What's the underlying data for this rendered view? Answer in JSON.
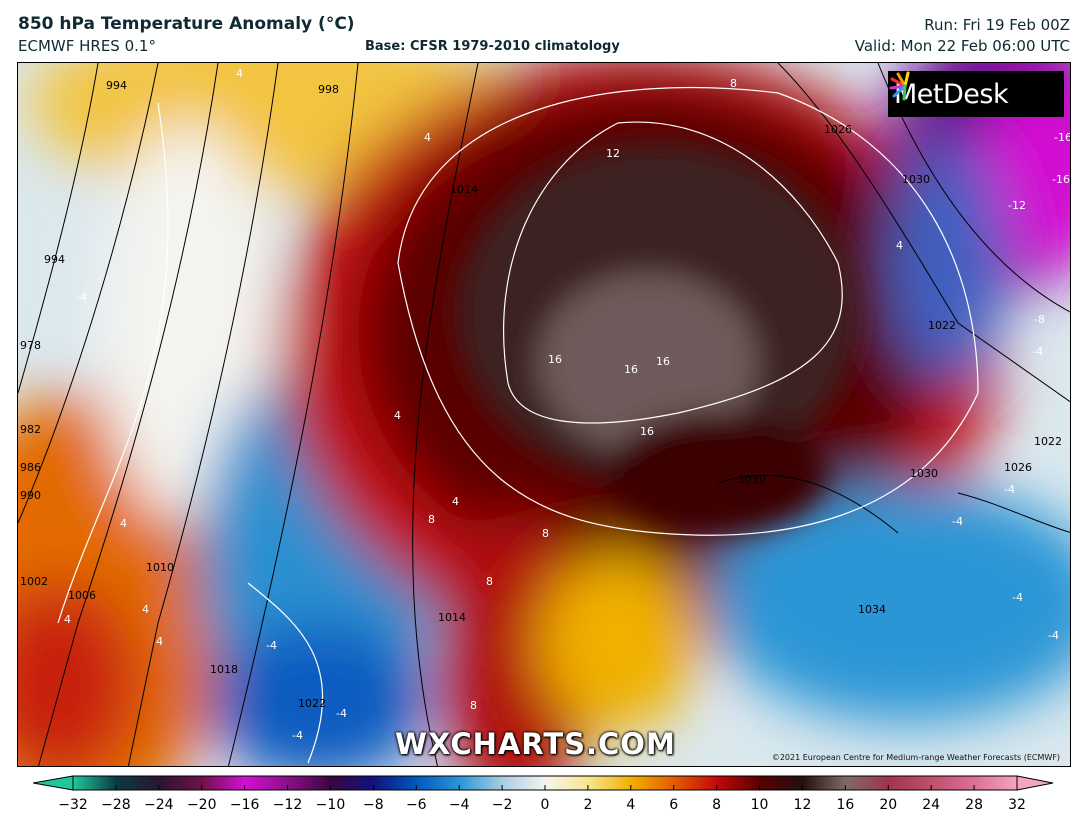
{
  "header": {
    "title": "850 hPa Temperature Anomaly (°C)",
    "model": "ECMWF HRES 0.1°",
    "base": "Base: CFSR 1979-2010 climatology",
    "run": "Run: Fri 19 Feb 00Z",
    "valid": "Valid: Mon 22 Feb 06:00 UTC"
  },
  "map": {
    "logo": "MetDesk",
    "watermark": "WXCHARTS.COM",
    "copyright": "©2021 European Centre for Medium-range Weather Forecasts (ECMWF)",
    "isobar_labels": [
      "994",
      "998",
      "994",
      "978",
      "982",
      "986",
      "990",
      "1002",
      "1006",
      "1010",
      "1014",
      "1018",
      "1022",
      "1014",
      "1026",
      "1030",
      "1022",
      "1022",
      "1026",
      "1030",
      "1030",
      "1034"
    ],
    "anomaly_labels": [
      "4",
      "4",
      "-4",
      "4",
      "8",
      "12",
      "16",
      "16",
      "16",
      "16",
      "4",
      "-16",
      "-16",
      "-12",
      "-8",
      "-4",
      "4",
      "4",
      "8",
      "8",
      "8",
      "-4",
      "-4",
      "-4",
      "4",
      "-4",
      "-4",
      "4",
      "4",
      "8",
      "-4",
      "-4"
    ]
  },
  "colorbar": {
    "ticks": [
      "−32",
      "−28",
      "−24",
      "−20",
      "−16",
      "−12",
      "−10",
      "−8",
      "−6",
      "−4",
      "−2",
      "0",
      "2",
      "4",
      "6",
      "8",
      "10",
      "12",
      "16",
      "20",
      "24",
      "28",
      "32"
    ],
    "colors": [
      "#1fc79a",
      "#0b3a44",
      "#2a1530",
      "#6e1248",
      "#d30fd3",
      "#8a1088",
      "#3a0540",
      "#12127e",
      "#0058c0",
      "#2a96d6",
      "#a8cde2",
      "#f4f4f0",
      "#f8e690",
      "#f0b000",
      "#e35c00",
      "#c20808",
      "#5a0000",
      "#221010",
      "#7d6a6a",
      "#a03452",
      "#c04e6e",
      "#de7092",
      "#f2a4c2"
    ]
  }
}
